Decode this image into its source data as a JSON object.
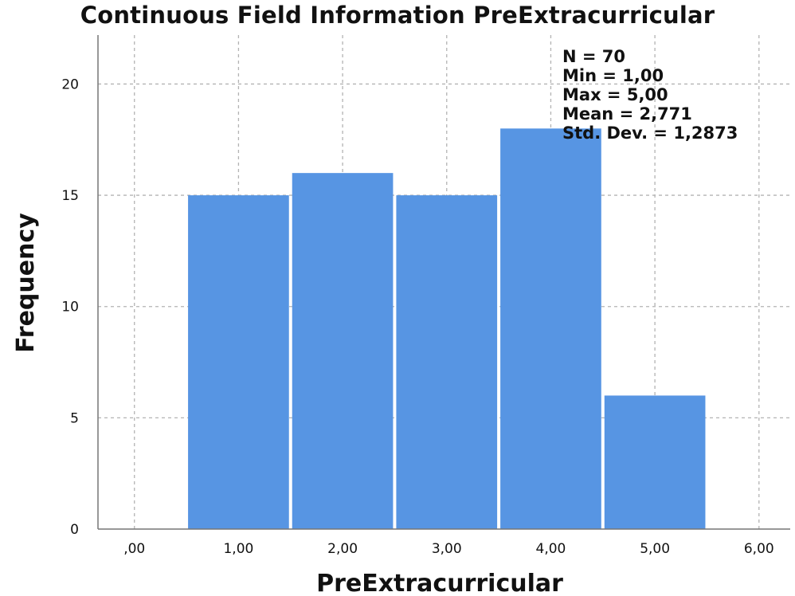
{
  "chart_data": {
    "type": "bar",
    "title": "Continuous Field Information PreExtracurricular",
    "xlabel": "PreExtracurricular",
    "ylabel": "Frequency",
    "x_ticks": [
      ",00",
      "1,00",
      "2,00",
      "3,00",
      "4,00",
      "5,00",
      "6,00"
    ],
    "x_tick_values": [
      0,
      1,
      2,
      3,
      4,
      5,
      6
    ],
    "y_ticks": [
      0,
      5,
      10,
      15,
      20
    ],
    "categories": [
      1,
      2,
      3,
      4,
      5
    ],
    "values": [
      15,
      16,
      15,
      18,
      6
    ],
    "bar_color": "#5795e3",
    "xlim": [
      -0.35,
      6.3
    ],
    "ylim": [
      0,
      22.2
    ],
    "grid": true,
    "statistics": [
      "N = 70",
      "Min = 1,00",
      "Max = 5,00",
      "Mean = 2,771",
      "Std. Dev. = 1,2873"
    ]
  }
}
